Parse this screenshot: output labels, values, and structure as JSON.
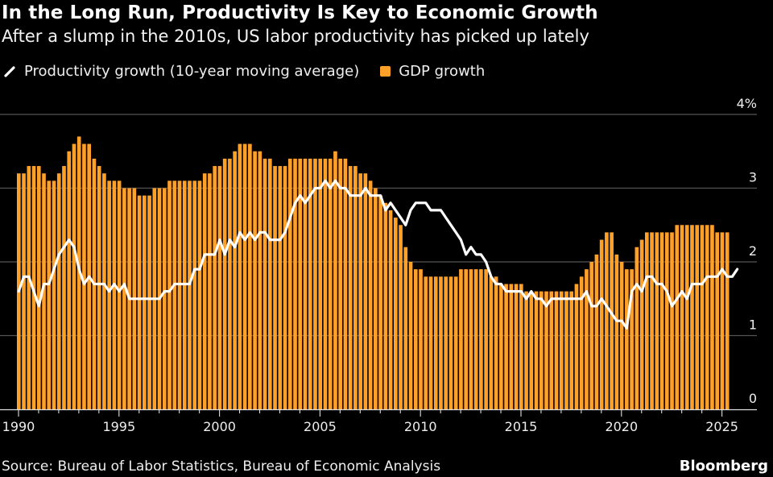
{
  "header": {
    "title": "In the Long Run, Productivity Is Key to Economic Growth",
    "subtitle": "After a slump in the 2010s, US labor productivity has picked up lately"
  },
  "legend": {
    "line_label": "Productivity growth (10-year moving average)",
    "bar_label": "GDP growth"
  },
  "footer": {
    "source": "Source: Bureau of Labor Statistics, Bureau of Economic Analysis",
    "brand": "Bloomberg"
  },
  "colors": {
    "background": "#000000",
    "bar": "#ffa028",
    "line": "#ffffff",
    "grid": "#555555"
  },
  "chart_data": {
    "type": "bar",
    "title": "In the Long Run, Productivity Is Key to Economic Growth",
    "subtitle": "After a slump in the 2010s, US labor productivity has picked up lately",
    "xlabel": "",
    "ylabel": "",
    "frequency": "quarterly",
    "x_start": "1990Q1",
    "x_end": "2025Q4",
    "x_ticks": [
      "1990",
      "1995",
      "2000",
      "2005",
      "2010",
      "2015",
      "2020",
      "2025"
    ],
    "y_ticks": [
      "0",
      "1",
      "2",
      "3",
      "4%"
    ],
    "ylim": [
      0,
      4
    ],
    "grid": true,
    "legend_position": "top-left",
    "series": [
      {
        "name": "GDP growth",
        "type": "bar",
        "values": [
          3.2,
          3.2,
          3.3,
          3.3,
          3.3,
          3.2,
          3.1,
          3.1,
          3.2,
          3.3,
          3.5,
          3.6,
          3.7,
          3.6,
          3.6,
          3.4,
          3.3,
          3.2,
          3.1,
          3.1,
          3.1,
          3.0,
          3.0,
          3.0,
          2.9,
          2.9,
          2.9,
          3.0,
          3.0,
          3.0,
          3.1,
          3.1,
          3.1,
          3.1,
          3.1,
          3.1,
          3.1,
          3.2,
          3.2,
          3.3,
          3.3,
          3.4,
          3.4,
          3.5,
          3.6,
          3.6,
          3.6,
          3.5,
          3.5,
          3.4,
          3.4,
          3.3,
          3.3,
          3.3,
          3.4,
          3.4,
          3.4,
          3.4,
          3.4,
          3.4,
          3.4,
          3.4,
          3.4,
          3.5,
          3.4,
          3.4,
          3.3,
          3.3,
          3.2,
          3.2,
          3.1,
          3.0,
          2.9,
          2.8,
          2.7,
          2.6,
          2.5,
          2.2,
          2.0,
          1.9,
          1.9,
          1.8,
          1.8,
          1.8,
          1.8,
          1.8,
          1.8,
          1.8,
          1.9,
          1.9,
          1.9,
          1.9,
          1.9,
          1.9,
          1.8,
          1.8,
          1.7,
          1.7,
          1.7,
          1.7,
          1.7,
          1.6,
          1.6,
          1.6,
          1.6,
          1.6,
          1.6,
          1.6,
          1.6,
          1.6,
          1.6,
          1.7,
          1.8,
          1.9,
          2.0,
          2.1,
          2.3,
          2.4,
          2.4,
          2.1,
          2.0,
          1.9,
          1.9,
          2.2,
          2.3,
          2.4,
          2.4,
          2.4,
          2.4,
          2.4,
          2.4,
          2.5,
          2.5,
          2.5,
          2.5,
          2.5,
          2.5,
          2.5,
          2.5,
          2.4,
          2.4,
          2.4
        ]
      },
      {
        "name": "Productivity growth (10-year moving average)",
        "type": "line",
        "values": [
          1.6,
          1.8,
          1.8,
          1.6,
          1.4,
          1.7,
          1.7,
          1.9,
          2.1,
          2.2,
          2.3,
          2.2,
          1.9,
          1.7,
          1.8,
          1.7,
          1.7,
          1.7,
          1.6,
          1.7,
          1.6,
          1.7,
          1.5,
          1.5,
          1.5,
          1.5,
          1.5,
          1.5,
          1.5,
          1.6,
          1.6,
          1.7,
          1.7,
          1.7,
          1.7,
          1.9,
          1.9,
          2.1,
          2.1,
          2.1,
          2.3,
          2.1,
          2.3,
          2.2,
          2.4,
          2.3,
          2.4,
          2.3,
          2.4,
          2.4,
          2.3,
          2.3,
          2.3,
          2.4,
          2.6,
          2.8,
          2.9,
          2.8,
          2.9,
          3.0,
          3.0,
          3.1,
          3.0,
          3.1,
          3.0,
          3.0,
          2.9,
          2.9,
          2.9,
          3.0,
          2.9,
          2.9,
          2.9,
          2.7,
          2.8,
          2.7,
          2.6,
          2.5,
          2.7,
          2.8,
          2.8,
          2.8,
          2.7,
          2.7,
          2.7,
          2.6,
          2.5,
          2.4,
          2.3,
          2.1,
          2.2,
          2.1,
          2.1,
          2.0,
          1.8,
          1.7,
          1.7,
          1.6,
          1.6,
          1.6,
          1.6,
          1.5,
          1.6,
          1.5,
          1.5,
          1.4,
          1.5,
          1.5,
          1.5,
          1.5,
          1.5,
          1.5,
          1.5,
          1.6,
          1.4,
          1.4,
          1.5,
          1.4,
          1.3,
          1.2,
          1.2,
          1.1,
          1.6,
          1.7,
          1.6,
          1.8,
          1.8,
          1.7,
          1.7,
          1.6,
          1.4,
          1.5,
          1.6,
          1.5,
          1.7,
          1.7,
          1.7,
          1.8,
          1.8,
          1.8,
          1.9,
          1.8,
          1.8,
          1.9
        ]
      }
    ]
  }
}
